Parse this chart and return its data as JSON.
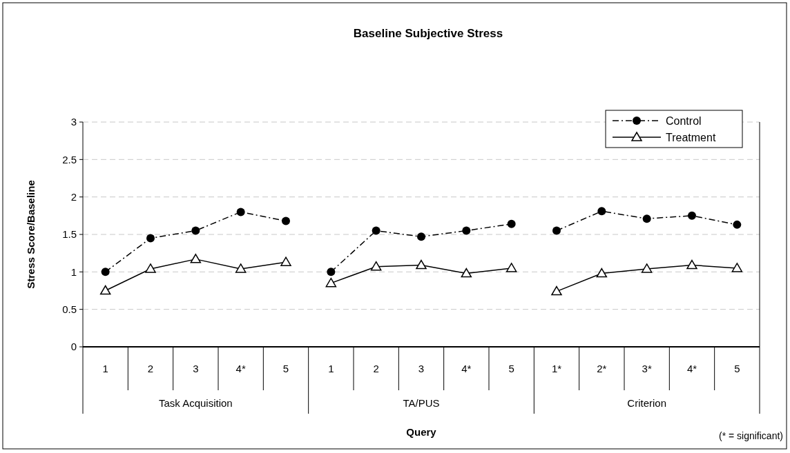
{
  "chart_data": {
    "type": "line",
    "title": "Baseline Subjective Stress",
    "xlabel": "Query",
    "ylabel": "Stress Score/Baseline",
    "categories": [
      "1",
      "2",
      "3",
      "4*",
      "5",
      "1",
      "2",
      "3",
      "4*",
      "5",
      "1*",
      "2*",
      "3*",
      "4*",
      "5"
    ],
    "annotations": [
      "Task Acquisition",
      "TA/PUS",
      "Criterion",
      "(* = significant)"
    ],
    "series": [
      {
        "name": "Control",
        "color": "#000000",
        "marker": "circle",
        "line_style": "dashed",
        "values": [
          1.0,
          1.45,
          1.55,
          1.8,
          1.68,
          1.0,
          1.55,
          1.47,
          1.55,
          1.64,
          1.55,
          1.81,
          1.71,
          1.75,
          1.63
        ]
      },
      {
        "name": "Treatment",
        "color": "#000000",
        "marker": "triangle",
        "line_style": "solid",
        "values": [
          0.75,
          1.04,
          1.17,
          1.04,
          1.13,
          0.85,
          1.07,
          1.09,
          0.98,
          1.05,
          0.74,
          0.98,
          1.04,
          1.09,
          1.05
        ]
      }
    ],
    "ylim": [
      0,
      3
    ],
    "yticks": [
      0,
      0.5,
      1,
      1.5,
      2,
      2.5,
      3
    ],
    "grid": "y",
    "legend": "top right"
  }
}
